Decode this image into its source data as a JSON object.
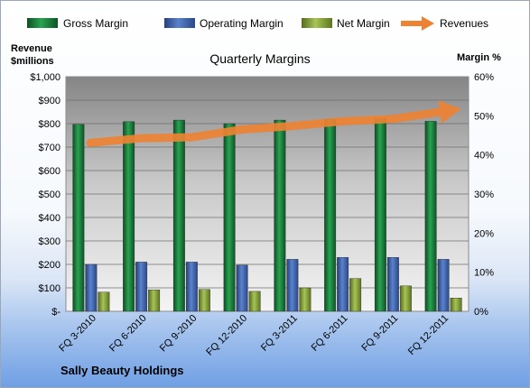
{
  "chart_data": {
    "type": "bar",
    "title": "Quarterly Margins",
    "company": "Sally Beauty Holdings",
    "y_left_label_line1": "Revenue",
    "y_left_label_line2": "$millions",
    "y_right_label": "Margin %",
    "categories": [
      "FQ 3-2010",
      "FQ 6-2010",
      "FQ 9-2010",
      "FQ 12-2010",
      "FQ 3-2011",
      "FQ 6-2011",
      "FQ 9-2011",
      "FQ 12-2011"
    ],
    "y_left_ticks": [
      "$-",
      "$100",
      "$200",
      "$300",
      "$400",
      "$500",
      "$600",
      "$700",
      "$800",
      "$900",
      "$1,000"
    ],
    "y_right_ticks": [
      "0%",
      "10%",
      "20%",
      "30%",
      "40%",
      "50%",
      "60%"
    ],
    "ylim_left": [
      0,
      1000
    ],
    "ylim_right": [
      0,
      60
    ],
    "grid": true,
    "legend_position": "top",
    "series": [
      {
        "name": "Gross Margin",
        "axis": "right",
        "kind": "bar",
        "color": "#1f7a3a",
        "values": [
          47.8,
          48.5,
          48.9,
          48.0,
          48.9,
          49.1,
          49.3,
          48.6
        ]
      },
      {
        "name": "Operating Margin",
        "axis": "right",
        "kind": "bar",
        "color": "#3f62a8",
        "values": [
          12.0,
          12.6,
          12.6,
          11.8,
          13.3,
          13.8,
          13.8,
          13.3
        ]
      },
      {
        "name": "Net Margin",
        "axis": "right",
        "kind": "bar",
        "color": "#8ba83a",
        "values": [
          4.9,
          5.5,
          5.6,
          5.1,
          6.0,
          8.4,
          6.5,
          3.4
        ]
      },
      {
        "name": "Revenues",
        "axis": "left",
        "kind": "line",
        "color": "#ed8233",
        "values": [
          718,
          738,
          742,
          775,
          790,
          810,
          820,
          852
        ]
      }
    ]
  }
}
